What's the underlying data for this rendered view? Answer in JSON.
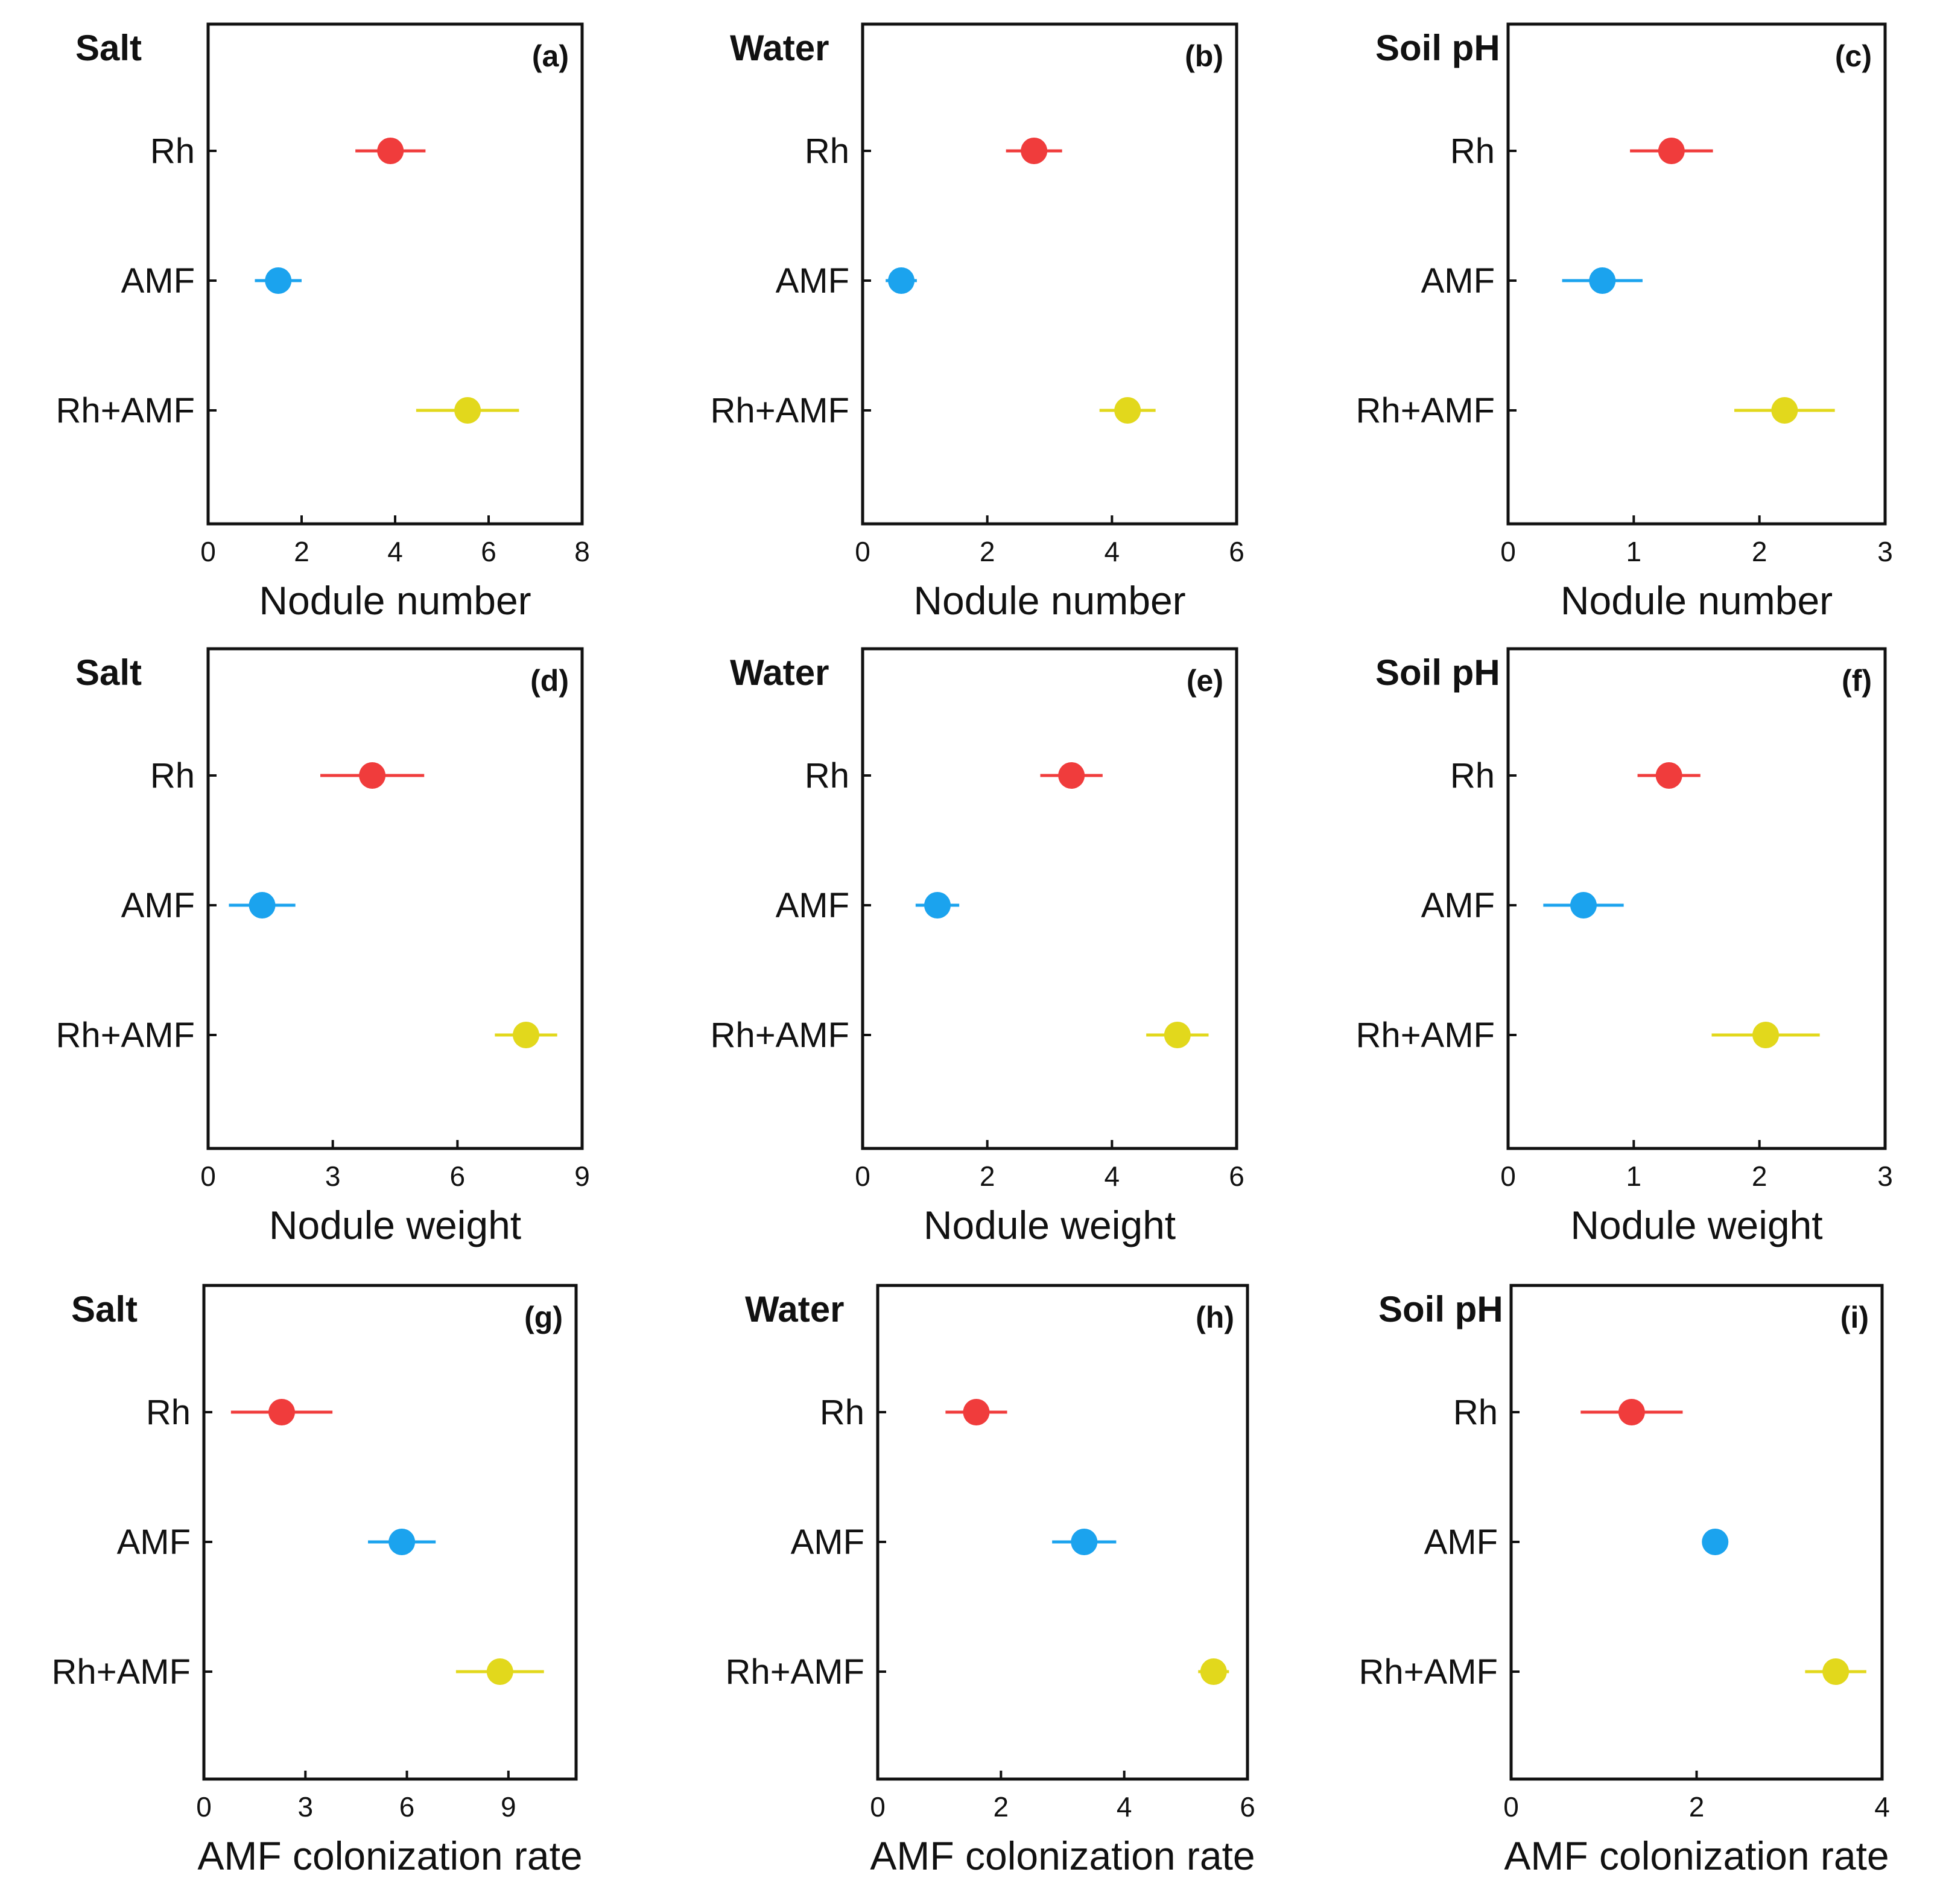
{
  "chart_data": [
    {
      "type": "scatter",
      "panel": "(a)",
      "title": "Salt",
      "xlabel": "Nodule number",
      "xlim": [
        0,
        8
      ],
      "xticks": [
        0,
        2,
        4,
        6,
        8
      ],
      "categories": [
        "Rh",
        "AMF",
        "Rh+AMF"
      ],
      "values": [
        3.9,
        1.5,
        5.55
      ],
      "errors": [
        0.75,
        0.5,
        1.1
      ]
    },
    {
      "type": "scatter",
      "panel": "(b)",
      "title": "Water",
      "xlabel": "Nodule number",
      "xlim": [
        0,
        6
      ],
      "xticks": [
        0,
        2,
        4,
        6
      ],
      "categories": [
        "Rh",
        "AMF",
        "Rh+AMF"
      ],
      "values": [
        2.75,
        0.62,
        4.25
      ],
      "errors": [
        0.45,
        0.25,
        0.45
      ]
    },
    {
      "type": "scatter",
      "panel": "(c)",
      "title": "Soil pH",
      "xlabel": "Nodule number",
      "xlim": [
        0,
        3
      ],
      "xticks": [
        0,
        1,
        2,
        3
      ],
      "categories": [
        "Rh",
        "AMF",
        "Rh+AMF"
      ],
      "values": [
        1.3,
        0.75,
        2.2
      ],
      "errors": [
        0.33,
        0.32,
        0.4
      ]
    },
    {
      "type": "scatter",
      "panel": "(d)",
      "title": "Salt",
      "xlabel": "Nodule weight",
      "xlim": [
        0,
        9
      ],
      "xticks": [
        0,
        3,
        6,
        9
      ],
      "categories": [
        "Rh",
        "AMF",
        "Rh+AMF"
      ],
      "values": [
        3.95,
        1.3,
        7.65
      ],
      "errors": [
        1.25,
        0.8,
        0.75
      ]
    },
    {
      "type": "scatter",
      "panel": "(e)",
      "title": "Water",
      "xlabel": "Nodule weight",
      "xlim": [
        0,
        6
      ],
      "xticks": [
        0,
        2,
        4,
        6
      ],
      "categories": [
        "Rh",
        "AMF",
        "Rh+AMF"
      ],
      "values": [
        3.35,
        1.2,
        5.05
      ],
      "errors": [
        0.5,
        0.35,
        0.5
      ]
    },
    {
      "type": "scatter",
      "panel": "(f)",
      "title": "Soil pH",
      "xlabel": "Nodule weight",
      "xlim": [
        0,
        3
      ],
      "xticks": [
        0,
        1,
        2,
        3
      ],
      "categories": [
        "Rh",
        "AMF",
        "Rh+AMF"
      ],
      "values": [
        1.28,
        0.6,
        2.05
      ],
      "errors": [
        0.25,
        0.32,
        0.43
      ]
    },
    {
      "type": "scatter",
      "panel": "(g)",
      "title": "Salt",
      "xlabel": "AMF colonization rate",
      "xlim": [
        0,
        11
      ],
      "xticks": [
        0,
        3,
        6,
        9
      ],
      "categories": [
        "Rh",
        "AMF",
        "Rh+AMF"
      ],
      "values": [
        2.3,
        5.85,
        8.75
      ],
      "errors": [
        1.5,
        1.0,
        1.3
      ]
    },
    {
      "type": "scatter",
      "panel": "(h)",
      "title": "Water",
      "xlabel": "AMF colonization rate",
      "xlim": [
        0,
        6
      ],
      "xticks": [
        0,
        2,
        4,
        6
      ],
      "categories": [
        "Rh",
        "AMF",
        "Rh+AMF"
      ],
      "values": [
        1.6,
        3.35,
        5.45
      ],
      "errors": [
        0.5,
        0.52,
        0.25
      ]
    },
    {
      "type": "scatter",
      "panel": "(i)",
      "title": "Soil pH",
      "xlabel": "AMF colonization rate",
      "xlim": [
        0,
        4
      ],
      "xticks": [
        0,
        2,
        4
      ],
      "categories": [
        "Rh",
        "AMF",
        "Rh+AMF"
      ],
      "values": [
        1.3,
        2.2,
        3.5
      ],
      "errors": [
        0.55,
        0.12,
        0.33
      ]
    }
  ],
  "colors": {
    "series": [
      "#f03c3c",
      "#1ba3ee",
      "#e2d81c"
    ],
    "axis": "#111111"
  }
}
